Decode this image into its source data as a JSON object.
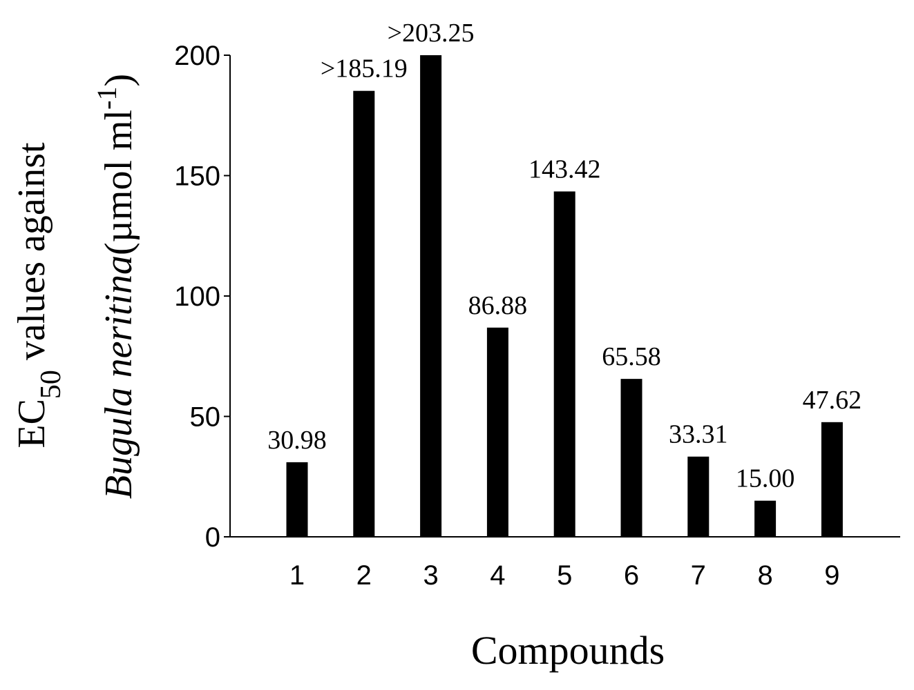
{
  "chart_data": {
    "type": "bar",
    "categories": [
      "1",
      "2",
      "3",
      "4",
      "5",
      "6",
      "7",
      "8",
      "9"
    ],
    "values": [
      30.98,
      185.19,
      200,
      86.88,
      143.42,
      65.58,
      33.31,
      15.0,
      47.62
    ],
    "data_labels": [
      "30.98",
      ">185.19",
      ">203.25",
      "86.88",
      "143.42",
      "65.58",
      "33.31",
      "15.00",
      "47.62"
    ],
    "xlabel": "Compounds",
    "ylabel": {
      "line1_pre": "EC",
      "line1_sub": "50",
      "line1_post": " values against",
      "line2_italic": "Bugula neritina",
      "line2_unit": "(µmol ml",
      "line2_sup": "-1",
      "line2_close": ")"
    },
    "ylim": [
      0,
      200
    ],
    "yticks": [
      0,
      50,
      100,
      150,
      200
    ],
    "bar_color": "#000000",
    "grid": false,
    "legend": "none"
  }
}
